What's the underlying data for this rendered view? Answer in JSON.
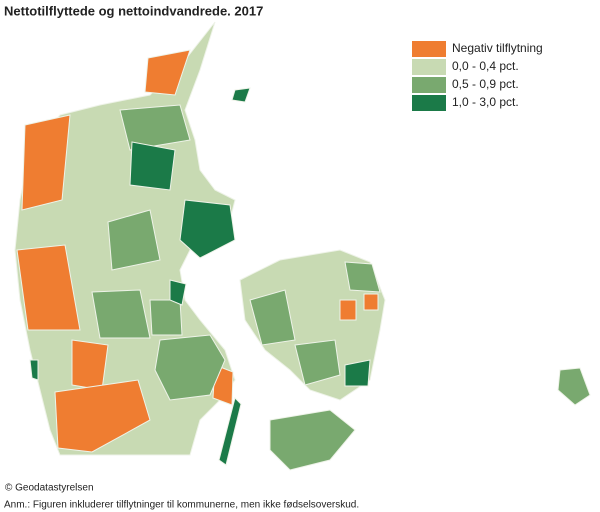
{
  "title": "Nettotilflyttede og nettoindvandrede. 2017",
  "legend": [
    {
      "label": "Negativ tilflytning",
      "color": "#ef7d31"
    },
    {
      "label": "0,0 - 0,4 pct.",
      "color": "#c8dab3"
    },
    {
      "label": "0,5 - 0,9 pct.",
      "color": "#79a96f"
    },
    {
      "label": "1,0 - 3,0 pct.",
      "color": "#1b7a48"
    }
  ],
  "credit": "© Geodatastyrelsen",
  "note": "Anm.: Figuren inkluderer tilflytninger til kommunerne, men ikke fødselsoverskud."
}
